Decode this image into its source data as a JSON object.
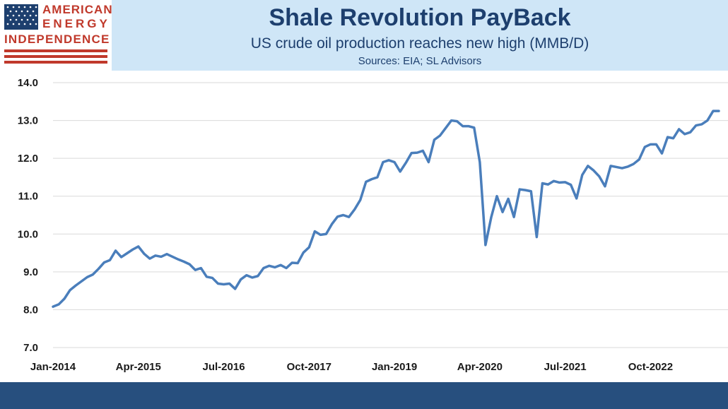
{
  "header": {
    "title": "Shale Revolution PayBack",
    "subtitle": "US crude oil production reaches new high (MMB/D)",
    "sources": "Sources: EIA; SL Advisors"
  },
  "logo": {
    "line1": "AMERICAN",
    "line2": "ENERGY",
    "line3": "INDEPENDENCE",
    "colors": {
      "red": "#c0392b",
      "blue": "#1d3f6e"
    }
  },
  "colors": {
    "line": "#4a7ebb",
    "header_bg": "#cfe6f7",
    "footer_bg": "#274f7e",
    "grid": "#d9d9d9"
  },
  "chart_data": {
    "type": "line",
    "title": "",
    "xlabel": "",
    "ylabel": "",
    "ylim": [
      7.0,
      14.0
    ],
    "yticks": [
      "7.0",
      "8.0",
      "9.0",
      "10.0",
      "11.0",
      "12.0",
      "13.0",
      "14.0"
    ],
    "xtick_labels": [
      "Jan-2014",
      "Apr-2015",
      "Jul-2016",
      "Oct-2017",
      "Jan-2019",
      "Apr-2020",
      "Jul-2021",
      "Oct-2022"
    ],
    "grid": "horizontal",
    "legend": "none",
    "series": [
      {
        "x_start": "Jan-2014",
        "frequency": "monthly",
        "values": [
          8.08,
          8.14,
          8.29,
          8.52,
          8.64,
          8.75,
          8.86,
          8.93,
          9.08,
          9.25,
          9.31,
          9.56,
          9.39,
          9.49,
          9.59,
          9.67,
          9.48,
          9.35,
          9.43,
          9.4,
          9.47,
          9.4,
          9.33,
          9.27,
          9.2,
          9.05,
          9.1,
          8.87,
          8.84,
          8.69,
          8.67,
          8.69,
          8.55,
          8.8,
          8.91,
          8.85,
          8.89,
          9.1,
          9.16,
          9.12,
          9.18,
          9.1,
          9.24,
          9.23,
          9.51,
          9.65,
          10.07,
          9.98,
          10.0,
          10.26,
          10.46,
          10.5,
          10.45,
          10.65,
          10.9,
          11.38,
          11.45,
          11.5,
          11.9,
          11.95,
          11.9,
          11.65,
          11.88,
          12.14,
          12.15,
          12.2,
          11.9,
          12.49,
          12.6,
          12.8,
          13.0,
          12.98,
          12.85,
          12.85,
          12.81,
          11.9,
          9.71,
          10.44,
          11.0,
          10.58,
          10.93,
          10.45,
          11.18,
          11.16,
          11.13,
          9.92,
          11.34,
          11.31,
          11.4,
          11.36,
          11.37,
          11.3,
          10.94,
          11.56,
          11.8,
          11.68,
          11.52,
          11.26,
          11.8,
          11.77,
          11.74,
          11.78,
          11.85,
          11.97,
          12.3,
          12.37,
          12.37,
          12.13,
          12.56,
          12.53,
          12.77,
          12.64,
          12.69,
          12.87,
          12.9,
          13.0,
          13.25,
          13.25
        ]
      }
    ]
  }
}
